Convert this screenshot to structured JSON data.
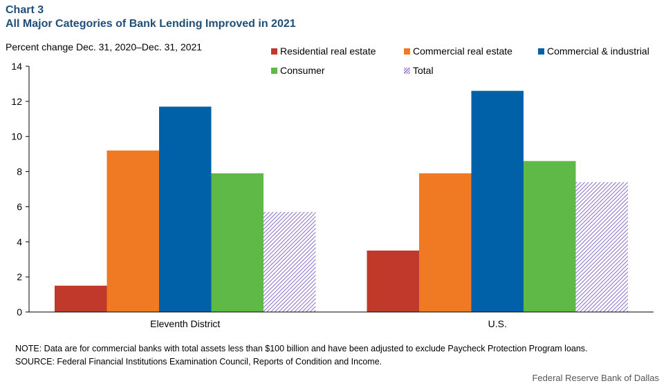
{
  "header": {
    "label": "Chart 3",
    "title": "All Major Categories of Bank Lending Improved in 2021",
    "y_unit": "Percent change Dec. 31, 2020–Dec. 31, 2021"
  },
  "footer": {
    "note": "NOTE:  Data are for commercial banks with total assets less than $100 billion and have been adjusted to exclude Paycheck Protection Program loans.",
    "source": "SOURCE:  Federal Financial Institutions Examination Council, Reports of Condition and Income.",
    "credit": "Federal Reserve Bank of Dallas"
  },
  "chart_data": {
    "type": "bar",
    "categories": [
      "Eleventh District",
      "U.S."
    ],
    "ylim": [
      0,
      14
    ],
    "yticks": [
      "0",
      "2",
      "4",
      "6",
      "8",
      "10",
      "12",
      "14"
    ],
    "grid": false,
    "legend_position": "top-right",
    "series": [
      {
        "name": "Residential real estate",
        "color": "#c0392b",
        "values": [
          1.5,
          3.5
        ]
      },
      {
        "name": "Commercial real estate",
        "color": "#f07a23",
        "values": [
          9.2,
          7.9
        ]
      },
      {
        "name": "Commercial & industrial",
        "color": "#0060a8",
        "values": [
          11.7,
          12.6
        ]
      },
      {
        "name": "Consumer",
        "color": "#5fb946",
        "values": [
          7.9,
          8.6
        ]
      },
      {
        "name": "Total",
        "color": "#8b6bc8",
        "pattern": "diagonal-hatch",
        "values": [
          5.7,
          7.4
        ]
      }
    ]
  }
}
